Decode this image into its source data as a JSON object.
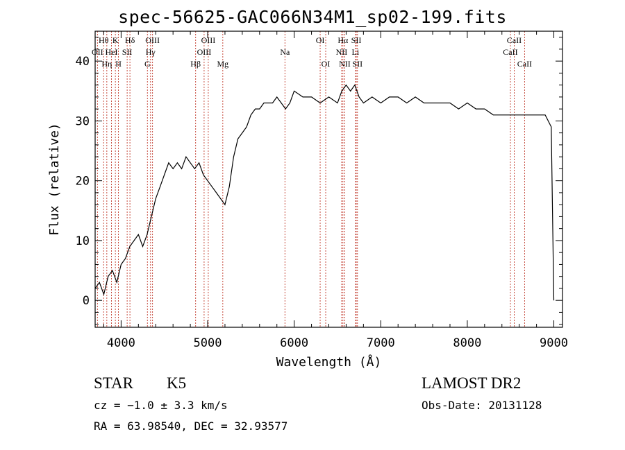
{
  "chart_data": {
    "type": "line",
    "title": "spec-56625-GAC066N34M1_sp02-199.fits",
    "xlabel": "Wavelength (Å)",
    "ylabel": "Flux (relative)",
    "xlim": [
      3700,
      9100
    ],
    "ylim": [
      -4.5,
      45
    ],
    "xticks": [
      4000,
      5000,
      6000,
      7000,
      8000,
      9000
    ],
    "yticks": [
      0,
      10,
      20,
      30,
      40
    ],
    "xtick_labels": [
      "4000",
      "5000",
      "6000",
      "7000",
      "8000",
      "9000"
    ],
    "ytick_labels": [
      "0",
      "10",
      "20",
      "30",
      "40"
    ],
    "grid": false,
    "series": [
      {
        "x": [
          3700,
          3750,
          3800,
          3850,
          3900,
          3950,
          4000,
          4050,
          4100,
          4150,
          4200,
          4250,
          4300,
          4350,
          4400,
          4450,
          4500,
          4550,
          4600,
          4650,
          4700,
          4750,
          4800,
          4850,
          4900,
          4950,
          5000,
          5050,
          5100,
          5150,
          5200,
          5250,
          5300,
          5350,
          5400,
          5450,
          5500,
          5550,
          5600,
          5650,
          5700,
          5750,
          5800,
          5850,
          5900,
          5950,
          6000,
          6100,
          6200,
          6300,
          6400,
          6500,
          6550,
          6600,
          6650,
          6700,
          6750,
          6800,
          6900,
          7000,
          7100,
          7200,
          7300,
          7400,
          7500,
          7600,
          7700,
          7800,
          7900,
          8000,
          8100,
          8200,
          8300,
          8400,
          8500,
          8600,
          8700,
          8800,
          8900,
          8970,
          9000
        ],
        "y": [
          2,
          3,
          1,
          4,
          5,
          3,
          6,
          7,
          9,
          10,
          11,
          9,
          11,
          14,
          17,
          19,
          21,
          23,
          22,
          23,
          22,
          24,
          23,
          22,
          23,
          21,
          20,
          19,
          18,
          17,
          16,
          19,
          24,
          27,
          28,
          29,
          31,
          32,
          32,
          33,
          33,
          33,
          34,
          33,
          32,
          33,
          35,
          34,
          34,
          33,
          34,
          33,
          35,
          36,
          35,
          36,
          34,
          33,
          34,
          33,
          34,
          34,
          33,
          34,
          33,
          33,
          33,
          33,
          32,
          33,
          32,
          32,
          31,
          31,
          31,
          31,
          31,
          31,
          31,
          29,
          0
        ]
      }
    ],
    "lines_row1": [
      {
        "label": "Hθ",
        "wl": 3798
      },
      {
        "label": "K",
        "wl": 3934
      },
      {
        "label": "Hδ",
        "wl": 4102
      },
      {
        "label": "OIII",
        "wl": 4363
      },
      {
        "label": "OIII",
        "wl": 5007
      },
      {
        "label": "OI",
        "wl": 6300
      },
      {
        "label": "Hα",
        "wl": 6563
      },
      {
        "label": "SII",
        "wl": 6717
      },
      {
        "label": "CaII",
        "wl": 8542
      }
    ],
    "lines_row2": [
      {
        "label": "OII",
        "wl": 3727
      },
      {
        "label": "HeI",
        "wl": 3889
      },
      {
        "label": "SII",
        "wl": 4070
      },
      {
        "label": "Hγ",
        "wl": 4340
      },
      {
        "label": "OIII",
        "wl": 4959
      },
      {
        "label": "Na",
        "wl": 5893
      },
      {
        "label": "NII",
        "wl": 6548
      },
      {
        "label": "Li",
        "wl": 6708
      },
      {
        "label": "CaII",
        "wl": 8498
      }
    ],
    "lines_row3": [
      {
        "label": "Hη",
        "wl": 3835
      },
      {
        "label": "H",
        "wl": 3969
      },
      {
        "label": "G",
        "wl": 4304
      },
      {
        "label": "Hβ",
        "wl": 4861
      },
      {
        "label": "Mg",
        "wl": 5175
      },
      {
        "label": "OI",
        "wl": 6364
      },
      {
        "label": "NII",
        "wl": 6584
      },
      {
        "label": "SII",
        "wl": 6731
      },
      {
        "label": "CaII",
        "wl": 8662
      }
    ]
  },
  "info": {
    "class_label": "STAR",
    "subclass_label": "K5",
    "survey": "LAMOST DR2",
    "cz": "cz = −1.0 ± 3.3 km/s",
    "obs_date": "Obs-Date: 20131128",
    "coords": "RA =  63.98540, DEC =  32.93577"
  },
  "colors": {
    "line_marker": "#c0392b",
    "spectrum": "#000000"
  }
}
